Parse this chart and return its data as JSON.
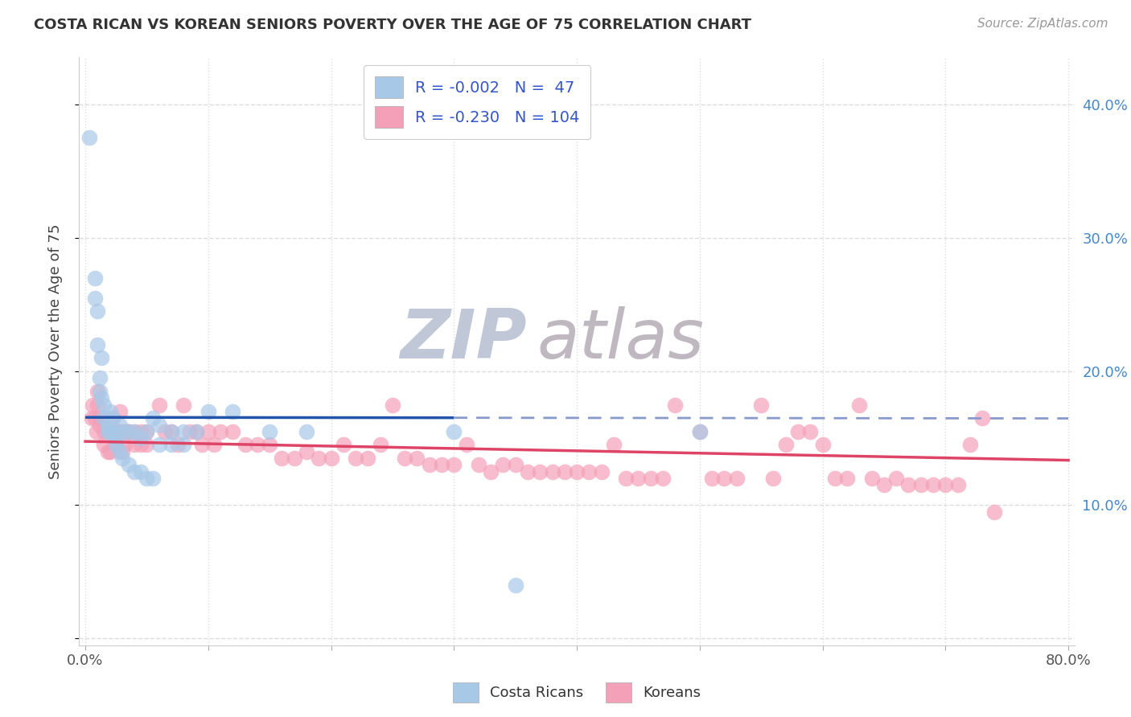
{
  "title": "COSTA RICAN VS KOREAN SENIORS POVERTY OVER THE AGE OF 75 CORRELATION CHART",
  "source": "Source: ZipAtlas.com",
  "ylabel": "Seniors Poverty Over the Age of 75",
  "xlabel": "",
  "xlim": [
    -0.005,
    0.805
  ],
  "ylim": [
    -0.005,
    0.435
  ],
  "xticks": [
    0.0,
    0.1,
    0.2,
    0.3,
    0.4,
    0.5,
    0.6,
    0.7,
    0.8
  ],
  "xticklabels": [
    "0.0%",
    "",
    "",
    "",
    "",
    "",
    "",
    "",
    "80.0%"
  ],
  "yticks": [
    0.0,
    0.1,
    0.2,
    0.3,
    0.4
  ],
  "ytick_left_labels": [
    "",
    "",
    "",
    "",
    ""
  ],
  "ytick_right_labels": [
    "",
    "10.0%",
    "20.0%",
    "30.0%",
    "40.0%"
  ],
  "cr_R": -0.002,
  "cr_N": 47,
  "ko_R": -0.23,
  "ko_N": 104,
  "cr_color": "#a8c8e8",
  "ko_color": "#f4a0b8",
  "cr_line_color": "#2255aa",
  "ko_line_color": "#dd4466",
  "cr_dash_color": "#8899cc",
  "background_color": "#ffffff",
  "grid_color": "#cccccc",
  "legend_text_color": "#3355cc",
  "watermark_zip_color": "#c0c8d8",
  "watermark_atlas_color": "#c0b8c0",
  "cr_scatter": [
    [
      0.003,
      0.375
    ],
    [
      0.008,
      0.27
    ],
    [
      0.008,
      0.255
    ],
    [
      0.01,
      0.245
    ],
    [
      0.01,
      0.22
    ],
    [
      0.012,
      0.195
    ],
    [
      0.012,
      0.185
    ],
    [
      0.013,
      0.21
    ],
    [
      0.013,
      0.18
    ],
    [
      0.015,
      0.175
    ],
    [
      0.015,
      0.165
    ],
    [
      0.018,
      0.16
    ],
    [
      0.018,
      0.155
    ],
    [
      0.02,
      0.17
    ],
    [
      0.02,
      0.155
    ],
    [
      0.022,
      0.165
    ],
    [
      0.022,
      0.155
    ],
    [
      0.025,
      0.15
    ],
    [
      0.025,
      0.145
    ],
    [
      0.028,
      0.14
    ],
    [
      0.028,
      0.16
    ],
    [
      0.03,
      0.135
    ],
    [
      0.03,
      0.155
    ],
    [
      0.035,
      0.155
    ],
    [
      0.035,
      0.13
    ],
    [
      0.04,
      0.155
    ],
    [
      0.04,
      0.125
    ],
    [
      0.045,
      0.125
    ],
    [
      0.045,
      0.15
    ],
    [
      0.05,
      0.155
    ],
    [
      0.05,
      0.12
    ],
    [
      0.055,
      0.165
    ],
    [
      0.055,
      0.12
    ],
    [
      0.06,
      0.16
    ],
    [
      0.06,
      0.145
    ],
    [
      0.07,
      0.155
    ],
    [
      0.07,
      0.145
    ],
    [
      0.08,
      0.155
    ],
    [
      0.08,
      0.145
    ],
    [
      0.09,
      0.155
    ],
    [
      0.1,
      0.17
    ],
    [
      0.12,
      0.17
    ],
    [
      0.15,
      0.155
    ],
    [
      0.18,
      0.155
    ],
    [
      0.3,
      0.155
    ],
    [
      0.35,
      0.04
    ],
    [
      0.5,
      0.155
    ]
  ],
  "ko_scatter": [
    [
      0.005,
      0.165
    ],
    [
      0.006,
      0.175
    ],
    [
      0.008,
      0.165
    ],
    [
      0.009,
      0.155
    ],
    [
      0.01,
      0.185
    ],
    [
      0.01,
      0.175
    ],
    [
      0.012,
      0.165
    ],
    [
      0.012,
      0.16
    ],
    [
      0.015,
      0.155
    ],
    [
      0.015,
      0.145
    ],
    [
      0.018,
      0.155
    ],
    [
      0.018,
      0.14
    ],
    [
      0.02,
      0.155
    ],
    [
      0.02,
      0.14
    ],
    [
      0.022,
      0.165
    ],
    [
      0.022,
      0.155
    ],
    [
      0.025,
      0.155
    ],
    [
      0.025,
      0.145
    ],
    [
      0.028,
      0.17
    ],
    [
      0.028,
      0.155
    ],
    [
      0.03,
      0.155
    ],
    [
      0.03,
      0.14
    ],
    [
      0.032,
      0.155
    ],
    [
      0.032,
      0.145
    ],
    [
      0.035,
      0.155
    ],
    [
      0.035,
      0.155
    ],
    [
      0.04,
      0.155
    ],
    [
      0.04,
      0.145
    ],
    [
      0.045,
      0.155
    ],
    [
      0.045,
      0.145
    ],
    [
      0.05,
      0.155
    ],
    [
      0.05,
      0.145
    ],
    [
      0.06,
      0.175
    ],
    [
      0.065,
      0.155
    ],
    [
      0.07,
      0.155
    ],
    [
      0.075,
      0.145
    ],
    [
      0.08,
      0.175
    ],
    [
      0.085,
      0.155
    ],
    [
      0.09,
      0.155
    ],
    [
      0.095,
      0.145
    ],
    [
      0.1,
      0.155
    ],
    [
      0.105,
      0.145
    ],
    [
      0.11,
      0.155
    ],
    [
      0.12,
      0.155
    ],
    [
      0.13,
      0.145
    ],
    [
      0.14,
      0.145
    ],
    [
      0.15,
      0.145
    ],
    [
      0.16,
      0.135
    ],
    [
      0.17,
      0.135
    ],
    [
      0.18,
      0.14
    ],
    [
      0.19,
      0.135
    ],
    [
      0.2,
      0.135
    ],
    [
      0.21,
      0.145
    ],
    [
      0.22,
      0.135
    ],
    [
      0.23,
      0.135
    ],
    [
      0.24,
      0.145
    ],
    [
      0.25,
      0.175
    ],
    [
      0.26,
      0.135
    ],
    [
      0.27,
      0.135
    ],
    [
      0.28,
      0.13
    ],
    [
      0.29,
      0.13
    ],
    [
      0.3,
      0.13
    ],
    [
      0.31,
      0.145
    ],
    [
      0.32,
      0.13
    ],
    [
      0.33,
      0.125
    ],
    [
      0.34,
      0.13
    ],
    [
      0.35,
      0.13
    ],
    [
      0.36,
      0.125
    ],
    [
      0.37,
      0.125
    ],
    [
      0.38,
      0.125
    ],
    [
      0.39,
      0.125
    ],
    [
      0.4,
      0.125
    ],
    [
      0.41,
      0.125
    ],
    [
      0.42,
      0.125
    ],
    [
      0.43,
      0.145
    ],
    [
      0.44,
      0.12
    ],
    [
      0.45,
      0.12
    ],
    [
      0.46,
      0.12
    ],
    [
      0.47,
      0.12
    ],
    [
      0.48,
      0.175
    ],
    [
      0.5,
      0.155
    ],
    [
      0.51,
      0.12
    ],
    [
      0.52,
      0.12
    ],
    [
      0.53,
      0.12
    ],
    [
      0.55,
      0.175
    ],
    [
      0.56,
      0.12
    ],
    [
      0.57,
      0.145
    ],
    [
      0.58,
      0.155
    ],
    [
      0.59,
      0.155
    ],
    [
      0.6,
      0.145
    ],
    [
      0.61,
      0.12
    ],
    [
      0.62,
      0.12
    ],
    [
      0.63,
      0.175
    ],
    [
      0.64,
      0.12
    ],
    [
      0.65,
      0.115
    ],
    [
      0.66,
      0.12
    ],
    [
      0.67,
      0.115
    ],
    [
      0.68,
      0.115
    ],
    [
      0.69,
      0.115
    ],
    [
      0.7,
      0.115
    ],
    [
      0.71,
      0.115
    ],
    [
      0.72,
      0.145
    ],
    [
      0.73,
      0.165
    ],
    [
      0.74,
      0.095
    ]
  ],
  "cr_line_xend_solid": 0.3,
  "cr_line_xend_dash": 0.8,
  "ko_line_xstart": 0.0,
  "ko_line_xend": 0.8
}
